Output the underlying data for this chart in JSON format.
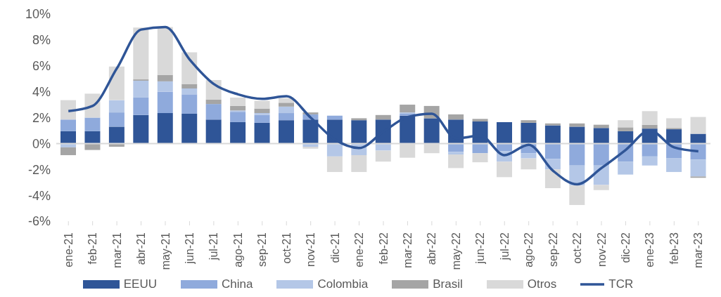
{
  "chart_data": {
    "type": "bar",
    "stacked": true,
    "categories": [
      "ene-21",
      "feb-21",
      "mar-21",
      "abr-21",
      "may-21",
      "jun-21",
      "jul-21",
      "ago-21",
      "sep-21",
      "oct-21",
      "nov-21",
      "dic-21",
      "ene-22",
      "feb-22",
      "mar-22",
      "abr-22",
      "may-22",
      "jun-22",
      "jul-22",
      "ago-22",
      "sep-22",
      "oct-22",
      "nov-22",
      "dic-22",
      "ene-23",
      "feb-23",
      "mar-23"
    ],
    "series": [
      {
        "name": "EEUU",
        "color": "#2f5597",
        "values": [
          0.95,
          0.95,
          1.3,
          2.2,
          2.35,
          2.3,
          1.85,
          1.65,
          1.6,
          1.8,
          1.85,
          1.85,
          1.8,
          1.85,
          2.15,
          1.95,
          1.85,
          1.7,
          1.65,
          1.6,
          1.4,
          1.3,
          1.2,
          0.95,
          1.15,
          1.1,
          0.75
        ]
      },
      {
        "name": "China",
        "color": "#8faadc",
        "values": [
          0.9,
          1.05,
          1.1,
          1.35,
          1.65,
          1.5,
          1.2,
          0.8,
          0.6,
          0.55,
          0.4,
          0.3,
          0,
          0,
          0.15,
          0,
          -0.65,
          -0.75,
          -0.6,
          -0.75,
          -1.2,
          -1.7,
          -1.7,
          -1.4,
          -1.0,
          -1.15,
          -1.25
        ]
      },
      {
        "name": "Colombia",
        "color": "#b4c7e7",
        "values": [
          -0.3,
          null,
          0.95,
          1.3,
          0.8,
          0.45,
          null,
          0.1,
          0.15,
          0.5,
          -0.25,
          -1.0,
          -0.9,
          -0.55,
          0.1,
          null,
          -0.2,
          0,
          -0.8,
          -0.4,
          -0.8,
          -1.55,
          -1.5,
          -1.0,
          -0.7,
          -1.05,
          -1.3
        ]
      },
      {
        "name": "Brasil",
        "color": "#a5a5a5",
        "values": [
          -0.6,
          -0.5,
          -0.25,
          0.1,
          0.5,
          0.35,
          0.35,
          0.35,
          0.35,
          0.3,
          0.15,
          0,
          0.15,
          0.35,
          0.6,
          0.95,
          0.4,
          0.2,
          null,
          0.2,
          0.15,
          0.25,
          0.25,
          0.3,
          0.3,
          0.1,
          -0.1
        ]
      },
      {
        "name": "Otros",
        "color": "#d9d9d9",
        "values": [
          1.5,
          1.85,
          2.6,
          4.0,
          3.7,
          2.45,
          1.5,
          0.65,
          0.6,
          0.35,
          -0.15,
          -1.2,
          -1.3,
          -0.85,
          -1.1,
          -0.75,
          -1.05,
          -0.7,
          -1.2,
          -0.85,
          -1.45,
          -1.5,
          -0.4,
          0.55,
          1.05,
          0.75,
          1.3
        ]
      },
      {
        "name": "TCR",
        "type": "line",
        "color": "#2f5597",
        "values": [
          2.5,
          2.9,
          5.8,
          8.8,
          9.0,
          6.5,
          4.6,
          3.8,
          3.45,
          3.65,
          2.0,
          0.3,
          -0.35,
          0.9,
          2.05,
          2.3,
          0.4,
          0.6,
          -0.9,
          -0.1,
          -2.1,
          -3.15,
          -1.9,
          -0.5,
          1.0,
          -0.3,
          -0.6
        ]
      }
    ],
    "ylim": [
      -6,
      10
    ],
    "yticks": [
      {
        "value": -6,
        "label": "-6%"
      },
      {
        "value": -4,
        "label": "-4%"
      },
      {
        "value": -2,
        "label": "-2%"
      },
      {
        "value": 0,
        "label": "0%"
      },
      {
        "value": 2,
        "label": "2%"
      },
      {
        "value": 4,
        "label": "4%"
      },
      {
        "value": 6,
        "label": "6%"
      },
      {
        "value": 8,
        "label": "8%"
      },
      {
        "value": 10,
        "label": "10%"
      }
    ],
    "ref_lines": [
      {
        "axis": "y",
        "value": 0,
        "color": "#d9d9d9"
      }
    ],
    "grid": false,
    "legend": "bottom",
    "marker": "none",
    "line_style": "solid"
  }
}
